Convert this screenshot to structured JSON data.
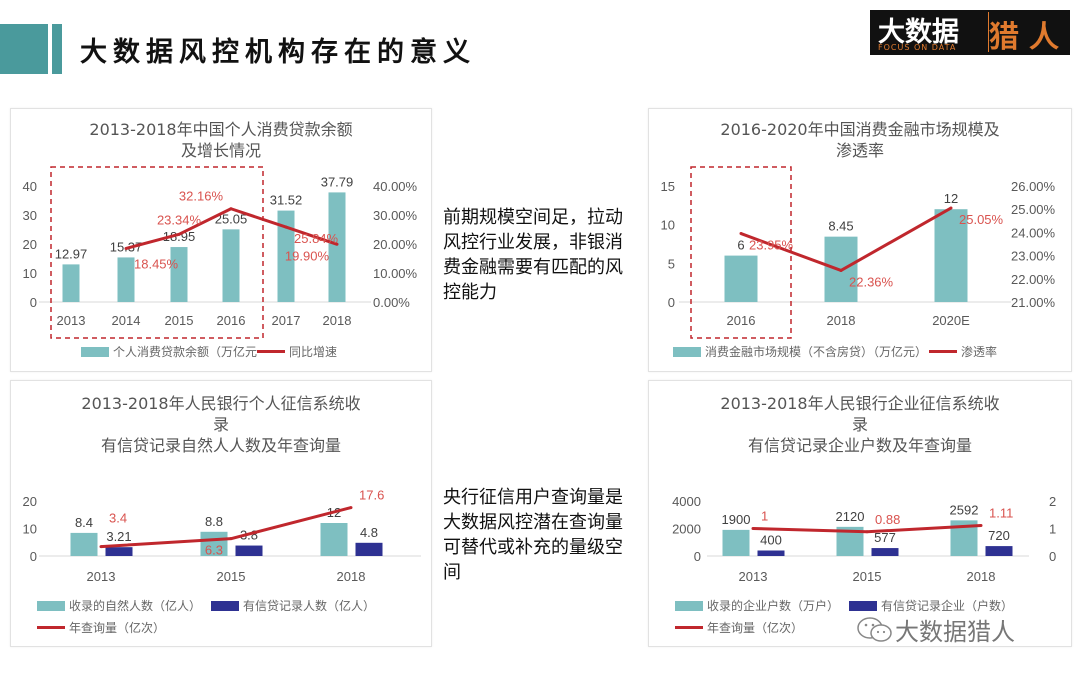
{
  "header": {
    "title": "大数据风控机构存在的意义",
    "accent": "#4a9a9c"
  },
  "logo": {
    "line1": "大数据",
    "line2": "FOCUS ON DATA",
    "line3": "猎人"
  },
  "side_texts": [
    "前期规模空间足，拉动风控行业发展，非银消费金融需要有匹配的风控能力",
    "央行征信用户查询量是大数据风控潜在查询量可替代或补充的量级空间"
  ],
  "watermark": "大数据猎人",
  "colors": {
    "teal": "#7ebfc1",
    "navy": "#2e3192",
    "line": "#c0272d",
    "line_label": "#d9534f",
    "highlight_box": "#c0272d"
  },
  "chart_data": [
    {
      "type": "bar+line",
      "title": [
        "2013-2018年中国个人消费贷款余额",
        "及增长情况"
      ],
      "categories": [
        "2013",
        "2014",
        "2015",
        "2016",
        "2017",
        "2018"
      ],
      "highlight_categories": [
        "2013",
        "2014",
        "2015",
        "2016"
      ],
      "yaxis_left": {
        "range": [
          0,
          40
        ],
        "ticks": [
          "0",
          "10",
          "20",
          "30",
          "40"
        ]
      },
      "yaxis_right": {
        "range": [
          0,
          40
        ],
        "ticks": [
          "0.00%",
          "10.00%",
          "20.00%",
          "30.00%",
          "40.00%"
        ]
      },
      "series": [
        {
          "name": "个人消费贷款余额（万亿元",
          "kind": "bar",
          "axis": "left",
          "color": "teal",
          "values": [
            12.97,
            15.37,
            18.95,
            25.05,
            31.52,
            37.79
          ],
          "labels": [
            "12.97",
            "15.37",
            "18.95",
            "25.05",
            "31.52",
            "37.79"
          ]
        },
        {
          "name": "同比增速",
          "kind": "line",
          "axis": "right",
          "color": "line",
          "values": [
            null,
            18.45,
            23.34,
            32.16,
            25.84,
            19.9
          ],
          "labels": [
            "",
            "18.45%",
            "23.34%",
            "32.16%",
            "25.84%",
            "19.90%"
          ]
        }
      ],
      "legend": "bottom"
    },
    {
      "type": "bar+line",
      "title": [
        "2016-2020年中国消费金融市场规模及",
        "渗透率"
      ],
      "categories": [
        "2016",
        "2018",
        "2020E"
      ],
      "highlight_categories": [
        "2016"
      ],
      "yaxis_left": {
        "range": [
          0,
          15
        ],
        "ticks": [
          "0",
          "5",
          "10",
          "15"
        ]
      },
      "yaxis_right": {
        "range": [
          21,
          26
        ],
        "ticks": [
          "21.00%",
          "22.00%",
          "23.00%",
          "24.00%",
          "25.00%",
          "26.00%"
        ]
      },
      "series": [
        {
          "name": "消费金融市场规模（不含房贷）（万亿元）",
          "kind": "bar",
          "axis": "left",
          "color": "teal",
          "values": [
            6,
            8.45,
            12
          ],
          "labels": [
            "6",
            "8.45",
            "12"
          ]
        },
        {
          "name": "渗透率",
          "kind": "line",
          "axis": "right",
          "color": "line",
          "values": [
            23.95,
            22.36,
            25.05
          ],
          "labels": [
            "23.95%",
            "22.36%",
            "25.05%"
          ]
        }
      ],
      "legend": "bottom"
    },
    {
      "type": "bar+line",
      "title": [
        "2013-2018年人民银行个人征信系统收",
        "录",
        "有信贷记录自然人人数及年查询量"
      ],
      "categories": [
        "2013",
        "2015",
        "2018"
      ],
      "yaxis_left": {
        "range": [
          0,
          20
        ],
        "ticks": [
          "0",
          "10",
          "20"
        ]
      },
      "series": [
        {
          "name": "收录的自然人数（亿人）",
          "kind": "bar",
          "axis": "left",
          "color": "teal",
          "values": [
            8.4,
            8.8,
            12
          ],
          "labels": [
            "8.4",
            "8.8",
            "12"
          ]
        },
        {
          "name": "有信贷记录人数（亿人）",
          "kind": "bar",
          "axis": "left",
          "color": "navy",
          "values": [
            3.21,
            3.8,
            4.8
          ],
          "labels": [
            "3.21",
            "3.8",
            "4.8"
          ]
        },
        {
          "name": "年查询量（亿次）",
          "kind": "line",
          "axis": "left",
          "color": "line",
          "values": [
            3.4,
            6.3,
            17.6
          ],
          "labels": [
            "3.4",
            "6.3",
            "17.6"
          ]
        }
      ],
      "legend": "bottom"
    },
    {
      "type": "bar+line",
      "title": [
        "2013-2018年人民银行企业征信系统收",
        "录",
        "有信贷记录企业户数及年查询量"
      ],
      "categories": [
        "2013",
        "2015",
        "2018"
      ],
      "yaxis_left": {
        "range": [
          0,
          4000
        ],
        "ticks": [
          "0",
          "2000",
          "4000"
        ]
      },
      "yaxis_right": {
        "range": [
          0,
          2
        ],
        "ticks": [
          "0",
          "1",
          "2"
        ]
      },
      "series": [
        {
          "name": "收录的企业户数（万户）",
          "kind": "bar",
          "axis": "left",
          "color": "teal",
          "values": [
            1900,
            2120,
            2592
          ],
          "labels": [
            "1900",
            "2120",
            "2592"
          ]
        },
        {
          "name": "有信贷记录企业（户数）",
          "kind": "bar",
          "axis": "left",
          "color": "navy",
          "values": [
            400,
            577,
            720
          ],
          "labels": [
            "400",
            "577",
            "720"
          ]
        },
        {
          "name": "年查询量（亿次）",
          "kind": "line",
          "axis": "right",
          "color": "line",
          "values": [
            1,
            0.88,
            1.11
          ],
          "labels": [
            "1",
            "0.88",
            "1.11"
          ]
        }
      ],
      "legend": "bottom"
    }
  ]
}
